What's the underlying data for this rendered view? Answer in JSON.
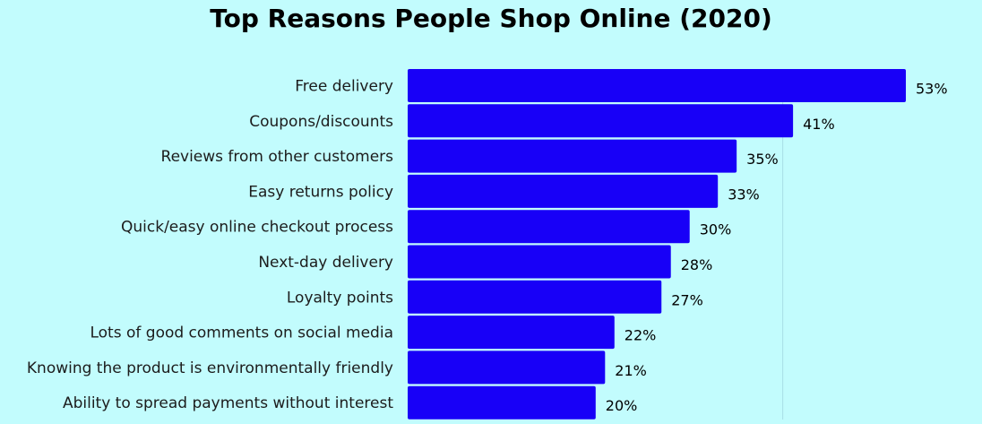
{
  "chart_data": {
    "type": "bar",
    "orientation": "horizontal",
    "title": "Top Reasons People Shop Online (2020)",
    "categories": [
      "Free delivery",
      "Coupons/discounts",
      "Reviews from other customers",
      "Easy returns policy",
      "Quick/easy online checkout process",
      "Next-day delivery",
      "Loyalty points",
      "Lots of good comments on social media",
      "Knowing the product is environmentally friendly",
      "Ability to spread payments without interest"
    ],
    "values": [
      53,
      41,
      35,
      33,
      30,
      28,
      27,
      22,
      21,
      20
    ],
    "value_labels": [
      "53%",
      "41%",
      "35%",
      "33%",
      "30%",
      "28%",
      "27%",
      "22%",
      "21%",
      "20%"
    ],
    "xlim": [
      0,
      53
    ],
    "grid": true,
    "bar_color": "#1800f7",
    "gridline_color": "#a8dfe6"
  }
}
